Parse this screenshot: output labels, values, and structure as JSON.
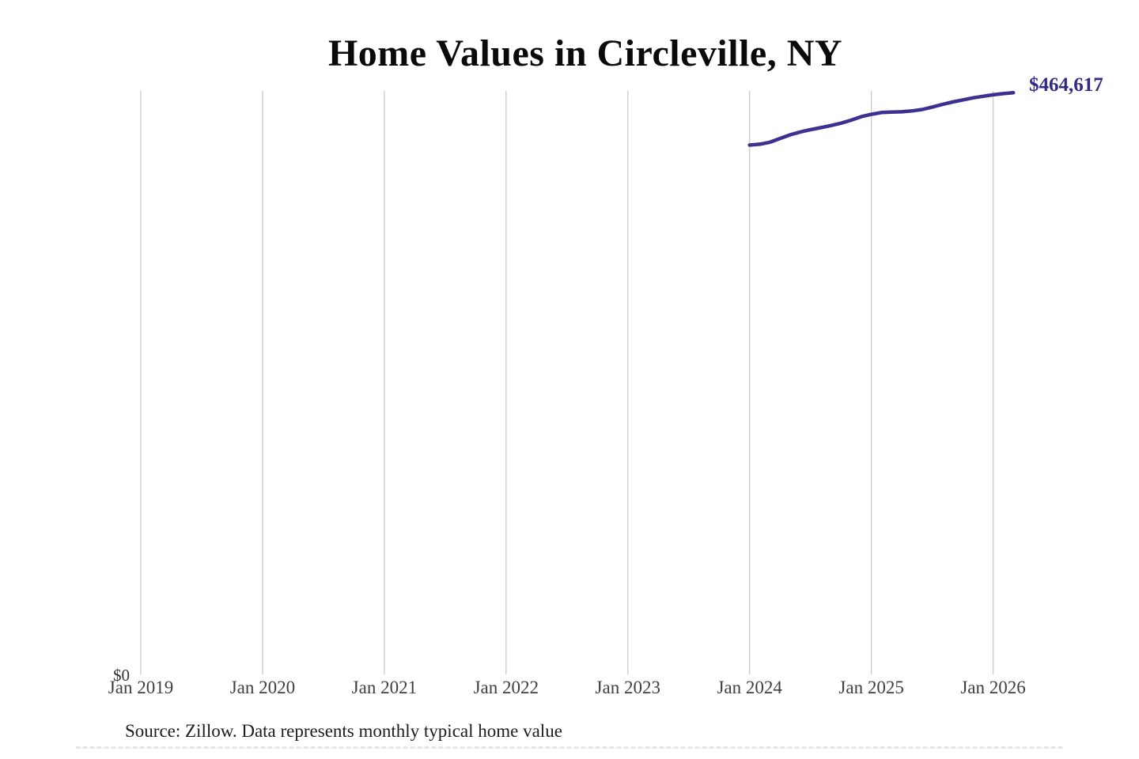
{
  "page": {
    "title": "Home Values in Circleville, NY",
    "source_note": "Source: Zillow. Data represents monthly typical home value",
    "end_value_label": "$464,617",
    "y_zero_label": "$0"
  },
  "colors": {
    "line": "#3a3190",
    "annotation": "#322b85",
    "gridline": "#c9c9c9",
    "axis_text": "#3f3f3f",
    "title_text": "#0a0a0a",
    "source_text": "#1c1c1c"
  },
  "chart_data": {
    "type": "line",
    "title": "Home Values in Circleville, NY",
    "xlabel": "",
    "ylabel": "",
    "x_tick_labels": [
      "Jan 2019",
      "Jan 2020",
      "Jan 2021",
      "Jan 2022",
      "Jan 2023",
      "Jan 2024",
      "Jan 2025",
      "Jan 2026"
    ],
    "y_tick_labels": [
      "$0"
    ],
    "y_axis_min": 0,
    "y_axis_implied_max": 740000,
    "grid": "vertical-only",
    "legend": "none",
    "end_annotation": "$464,617",
    "series": [
      {
        "name": "Monthly typical home value",
        "color": "#3a3190",
        "x_unit": "months-since-Jan-2019",
        "points": [
          {
            "m": 60,
            "label": "Jan 2024",
            "value": 422800
          },
          {
            "m": 61,
            "label": "Feb 2024",
            "value": 423500
          },
          {
            "m": 62,
            "label": "Mar 2024",
            "value": 425100
          },
          {
            "m": 63,
            "label": "Apr 2024",
            "value": 428100
          },
          {
            "m": 64,
            "label": "May 2024",
            "value": 431000
          },
          {
            "m": 65,
            "label": "Jun 2024",
            "value": 433300
          },
          {
            "m": 66,
            "label": "Jul 2024",
            "value": 435100
          },
          {
            "m": 67,
            "label": "Aug 2024",
            "value": 436700
          },
          {
            "m": 68,
            "label": "Sep 2024",
            "value": 438400
          },
          {
            "m": 69,
            "label": "Oct 2024",
            "value": 440300
          },
          {
            "m": 70,
            "label": "Nov 2024",
            "value": 442700
          },
          {
            "m": 71,
            "label": "Dec 2024",
            "value": 445500
          },
          {
            "m": 72,
            "label": "Jan 2025",
            "value": 447400
          },
          {
            "m": 73,
            "label": "Feb 2025",
            "value": 448800
          },
          {
            "m": 74,
            "label": "Mar 2025",
            "value": 449200
          },
          {
            "m": 75,
            "label": "Apr 2025",
            "value": 449400
          },
          {
            "m": 76,
            "label": "May 2025",
            "value": 450100
          },
          {
            "m": 77,
            "label": "Jun 2025",
            "value": 451200
          },
          {
            "m": 78,
            "label": "Jul 2025",
            "value": 453200
          },
          {
            "m": 79,
            "label": "Aug 2025",
            "value": 455300
          },
          {
            "m": 80,
            "label": "Sep 2025",
            "value": 457200
          },
          {
            "m": 81,
            "label": "Oct 2025",
            "value": 458900
          },
          {
            "m": 82,
            "label": "Nov 2025",
            "value": 460500
          },
          {
            "m": 83,
            "label": "Dec 2025",
            "value": 461800
          },
          {
            "m": 84,
            "label": "Jan 2026",
            "value": 463000
          },
          {
            "m": 85,
            "label": "Feb 2026",
            "value": 463900
          },
          {
            "m": 86,
            "label": "Mar 2026",
            "value": 464617
          }
        ]
      }
    ]
  }
}
